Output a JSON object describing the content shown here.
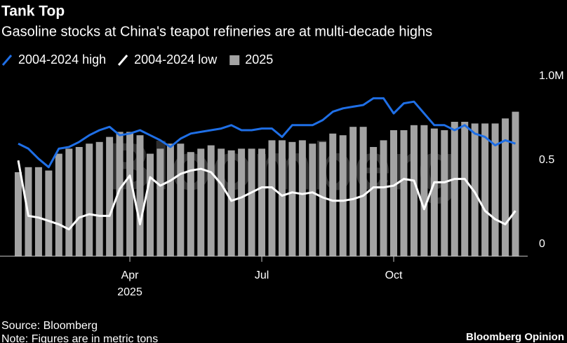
{
  "chart_data": {
    "type": "bar",
    "title": "Tank Top",
    "subtitle": "Gasoline stocks at China's teapot refineries are at multi-decade highs",
    "source": "Source: Bloomberg",
    "note": "Note: Figures are in metric tons",
    "brand": "Bloomberg Opinion",
    "watermark": "Bloomberg",
    "year_label": "2025",
    "categories": [
      null,
      null,
      null,
      null,
      null,
      null,
      null,
      null,
      null,
      null,
      null,
      "Apr",
      null,
      null,
      null,
      null,
      null,
      null,
      null,
      null,
      null,
      null,
      null,
      null,
      "Jul",
      null,
      null,
      null,
      null,
      null,
      null,
      null,
      null,
      null,
      null,
      null,
      null,
      "Oct",
      null,
      null,
      null,
      null,
      null,
      null,
      null,
      null,
      null,
      null,
      null,
      null
    ],
    "ylim": [
      0,
      1
    ],
    "yticks": [
      0,
      0.5,
      {
        "value": 1,
        "label": "1.0M"
      }
    ],
    "series": [
      {
        "name": "2004-2024 high",
        "type": "line",
        "color": "#1f6fe6",
        "values": [
          0.67,
          0.64,
          0.58,
          0.53,
          0.64,
          0.65,
          0.68,
          0.72,
          0.75,
          0.77,
          0.72,
          0.73,
          0.75,
          0.72,
          0.69,
          0.65,
          0.7,
          0.73,
          0.74,
          0.75,
          0.76,
          0.78,
          0.75,
          0.75,
          0.76,
          0.76,
          0.71,
          0.78,
          0.78,
          0.78,
          0.81,
          0.86,
          0.88,
          0.89,
          0.9,
          0.94,
          0.94,
          0.85,
          0.91,
          0.92,
          0.85,
          0.78,
          0.78,
          0.75,
          0.78,
          0.73,
          0.71,
          0.66,
          0.69,
          0.67
        ]
      },
      {
        "name": "2004-2024 low",
        "type": "line",
        "color": "#ffffff",
        "values": [
          0.57,
          0.24,
          0.23,
          0.21,
          0.19,
          0.16,
          0.23,
          0.25,
          0.24,
          0.24,
          0.4,
          0.48,
          0.19,
          0.47,
          0.42,
          0.45,
          0.49,
          0.51,
          0.52,
          0.5,
          0.43,
          0.33,
          0.35,
          0.38,
          0.41,
          0.41,
          0.36,
          0.38,
          0.37,
          0.38,
          0.35,
          0.33,
          0.33,
          0.34,
          0.36,
          0.41,
          0.41,
          0.42,
          0.46,
          0.45,
          0.28,
          0.44,
          0.44,
          0.46,
          0.46,
          0.38,
          0.27,
          0.22,
          0.19,
          0.27
        ]
      },
      {
        "name": "2025",
        "type": "bar",
        "color": "#a3a3a3",
        "values": [
          0.5,
          0.53,
          0.53,
          0.51,
          0.61,
          0.64,
          0.65,
          0.67,
          0.68,
          0.71,
          0.74,
          0.74,
          0.72,
          0.61,
          0.64,
          0.67,
          0.67,
          0.62,
          0.64,
          0.66,
          0.64,
          0.63,
          0.64,
          0.64,
          0.64,
          0.69,
          0.69,
          0.68,
          0.69,
          0.67,
          0.68,
          0.73,
          0.72,
          0.77,
          0.77,
          0.65,
          0.69,
          0.75,
          0.75,
          0.78,
          0.78,
          0.76,
          0.75,
          0.8,
          0.8,
          0.79,
          0.79,
          0.79,
          0.82,
          0.86
        ]
      }
    ]
  }
}
